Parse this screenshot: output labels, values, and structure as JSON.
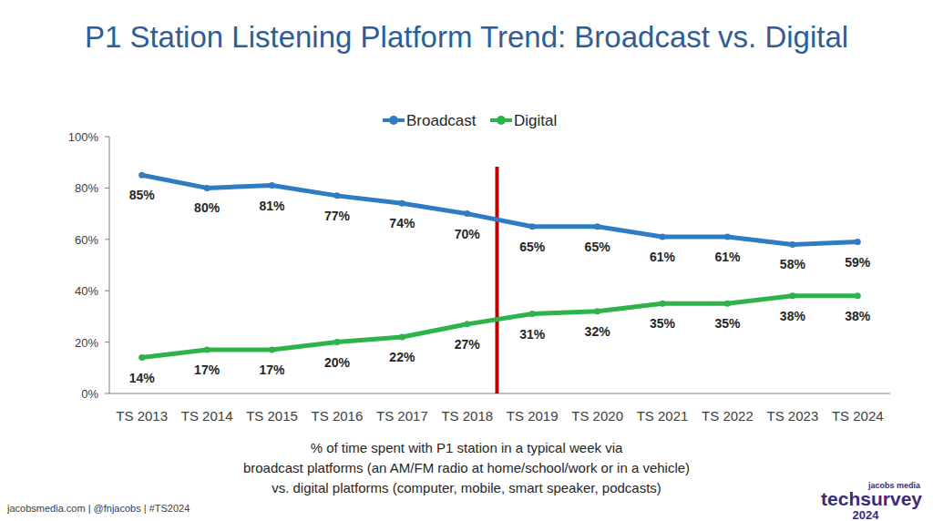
{
  "chart_data": {
    "type": "line",
    "title": "P1 Station Listening Platform Trend: Broadcast vs. Digital",
    "caption": [
      "% of time spent with P1 station in a typical week via",
      "broadcast platforms (an AM/FM radio at home/school/work or in a vehicle)",
      "vs. digital platforms (computer, mobile, smart speaker, podcasts)"
    ],
    "footer": "jacobsmedia.com  |  @fnjacobs  |  #TS2024",
    "logo": [
      "jacobs media",
      "techsurvey",
      "2024"
    ],
    "categories": [
      "TS 2013",
      "TS 2014",
      "TS 2015",
      "TS 2016",
      "TS 2017",
      "TS 2018",
      "TS 2019",
      "TS 2020",
      "TS 2021",
      "TS 2022",
      "TS 2023",
      "TS 2024"
    ],
    "series": [
      {
        "name": "Broadcast",
        "color": "#2f7cc3",
        "marker": "circle",
        "values": [
          85,
          80,
          81,
          77,
          74,
          70,
          65,
          65,
          61,
          61,
          58,
          59
        ],
        "value_labels": [
          "85%",
          "80%",
          "81%",
          "77%",
          "74%",
          "70%",
          "65%",
          "65%",
          "61%",
          "61%",
          "58%",
          "59%"
        ]
      },
      {
        "name": "Digital",
        "color": "#2db34a",
        "marker": "circle",
        "values": [
          14,
          17,
          17,
          20,
          22,
          27,
          31,
          32,
          35,
          35,
          38,
          38
        ],
        "value_labels": [
          "14%",
          "17%",
          "17%",
          "20%",
          "22%",
          "27%",
          "31%",
          "32%",
          "35%",
          "35%",
          "38%",
          "38%"
        ]
      }
    ],
    "ylim": [
      0,
      100
    ],
    "yticks": [
      {
        "value": 0,
        "label": "0%"
      },
      {
        "value": 20,
        "label": "20%"
      },
      {
        "value": 40,
        "label": "40%"
      },
      {
        "value": 60,
        "label": "60%"
      },
      {
        "value": 80,
        "label": "80%"
      },
      {
        "value": 100,
        "label": "100%"
      }
    ],
    "grid": false,
    "legend": "top",
    "data_labels": true
  }
}
